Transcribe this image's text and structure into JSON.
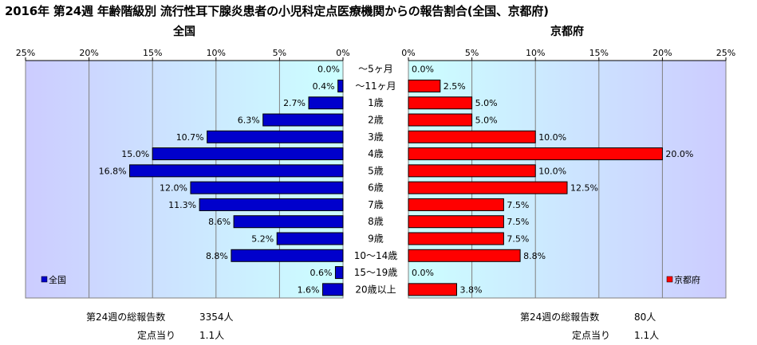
{
  "title": "2016年 第24週 年齢階級別 流行性耳下腺炎患者の小児科定点医療機関からの報告割合(全国、京都府)",
  "chart_data": [
    {
      "type": "bar",
      "orientation": "horizontal",
      "title": "全国",
      "categories": [
        "～5ヶ月",
        "～11ヶ月",
        "1歳",
        "2歳",
        "3歳",
        "4歳",
        "5歳",
        "6歳",
        "7歳",
        "8歳",
        "9歳",
        "10～14歳",
        "15～19歳",
        "20歳以上"
      ],
      "series": [
        {
          "name": "全国",
          "values": [
            0.0,
            0.4,
            2.7,
            6.3,
            10.7,
            15.0,
            16.8,
            12.0,
            11.3,
            8.6,
            5.2,
            8.8,
            0.6,
            1.6
          ],
          "color": "#0000cc"
        }
      ],
      "data_labels": [
        "0.0%",
        "0.4%",
        "2.7%",
        "6.3%",
        "10.7%",
        "15.0%",
        "16.8%",
        "12.0%",
        "11.3%",
        "8.6%",
        "5.2%",
        "8.8%",
        "0.6%",
        "1.6%"
      ],
      "xlim": [
        0,
        25
      ],
      "ticks": [
        "25%",
        "20%",
        "15%",
        "10%",
        "5%",
        "0%"
      ],
      "direction": "reversed",
      "legend_position": "bottom-left",
      "grid": true
    },
    {
      "type": "bar",
      "orientation": "horizontal",
      "title": "京都府",
      "categories": [
        "～5ヶ月",
        "～11ヶ月",
        "1歳",
        "2歳",
        "3歳",
        "4歳",
        "5歳",
        "6歳",
        "7歳",
        "8歳",
        "9歳",
        "10～14歳",
        "15～19歳",
        "20歳以上"
      ],
      "series": [
        {
          "name": "京都府",
          "values": [
            0.0,
            2.5,
            5.0,
            5.0,
            10.0,
            20.0,
            10.0,
            12.5,
            7.5,
            7.5,
            7.5,
            8.8,
            0.0,
            3.8
          ],
          "color": "#ff0000"
        }
      ],
      "data_labels": [
        "0.0%",
        "2.5%",
        "5.0%",
        "5.0%",
        "10.0%",
        "20.0%",
        "10.0%",
        "12.5%",
        "7.5%",
        "7.5%",
        "7.5%",
        "8.8%",
        "0.0%",
        "3.8%"
      ],
      "xlim": [
        0,
        25
      ],
      "ticks": [
        "0%",
        "5%",
        "10%",
        "15%",
        "20%",
        "25%"
      ],
      "legend_position": "bottom-right",
      "grid": true
    }
  ],
  "footer": {
    "left_total_label": "第24週の総報告数",
    "left_total_value": "3354人",
    "left_per_label": "定点当り",
    "left_per_value": "1.1人",
    "right_total_label": "第24週の総報告数",
    "right_total_value": "80人",
    "right_per_label": "定点当り",
    "right_per_value": "1.1人"
  }
}
